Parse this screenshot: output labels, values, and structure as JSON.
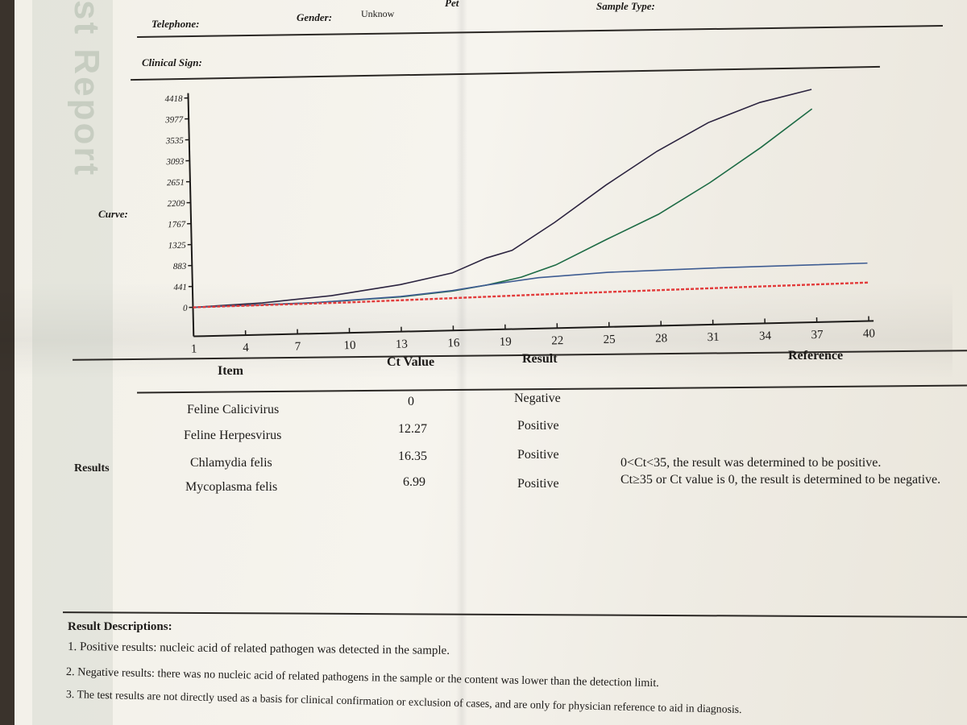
{
  "watermark": "st Report",
  "header": {
    "telephone_label": "Telephone:",
    "gender_label": "Gender:",
    "gender_value": "Unknow",
    "pet_label": "Pet",
    "sample_type_label": "Sample Type:",
    "clinical_sign_label": "Clinical Sign:"
  },
  "curve_label": "Curve:",
  "chart_data": {
    "type": "line",
    "y_ticks": [
      "0",
      "441",
      "883",
      "1325",
      "1767",
      "2209",
      "2651",
      "3093",
      "3535",
      "3977",
      "4418"
    ],
    "x_ticks": [
      "1",
      "4",
      "7",
      "10",
      "13",
      "16",
      "19",
      "22",
      "25",
      "28",
      "31",
      "34",
      "37",
      "40"
    ],
    "xlim": [
      1,
      40
    ],
    "ylim": [
      0,
      4418
    ],
    "series": [
      {
        "color": "#2c2440",
        "dashed": false,
        "x": [
          1,
          5,
          9,
          13,
          16,
          18,
          19.5,
          22,
          25,
          28,
          31,
          34,
          37
        ],
        "y": [
          0,
          60,
          180,
          380,
          600,
          900,
          1050,
          1620,
          2380,
          3070,
          3650,
          4050,
          4300
        ]
      },
      {
        "color": "#1d6b45",
        "dashed": false,
        "x": [
          1,
          8,
          13,
          16,
          18,
          20,
          22,
          25,
          28,
          31,
          34,
          37
        ],
        "y": [
          0,
          40,
          120,
          220,
          330,
          480,
          720,
          1240,
          1740,
          2380,
          3100,
          3890
        ]
      },
      {
        "color": "#3e5c92",
        "dashed": false,
        "x": [
          1,
          8,
          13,
          16,
          18,
          21,
          25,
          28,
          31,
          34,
          37,
          40
        ],
        "y": [
          0,
          40,
          130,
          230,
          330,
          460,
          540,
          560,
          580,
          590,
          600,
          610
        ]
      },
      {
        "color": "#e23a3a",
        "dashed": true,
        "x": [
          1,
          10,
          16,
          22,
          28,
          34,
          40
        ],
        "y": [
          0,
          30,
          70,
          110,
          140,
          170,
          200
        ]
      }
    ]
  },
  "table": {
    "headers": {
      "item": "Item",
      "ct": "Ct Value",
      "result": "Result",
      "reference": "Reference"
    },
    "section_label": "Results",
    "rows": [
      {
        "item": "Feline Calicivirus",
        "ct": "0",
        "result": "Negative"
      },
      {
        "item": "Feline Herpesvirus",
        "ct": "12.27",
        "result": "Positive"
      },
      {
        "item": "Chlamydia felis",
        "ct": "16.35",
        "result": "Positive"
      },
      {
        "item": "Mycoplasma felis",
        "ct": "6.99",
        "result": "Positive"
      }
    ],
    "reference_line1": "0<Ct<35, the result was determined to be positive.",
    "reference_line2": "Ct≥35 or Ct value is 0, the result is determined to be negative."
  },
  "descriptions": {
    "title": "Result Descriptions:",
    "items": [
      "1. Positive results: nucleic acid of related pathogen was detected in the sample.",
      "2. Negative results: there was no nucleic acid of related pathogens in the sample or the content was lower than the detection limit.",
      "3. The test results are not directly used as a basis for clinical confirmation or exclusion of cases, and are only for physician reference to aid in diagnosis."
    ]
  }
}
